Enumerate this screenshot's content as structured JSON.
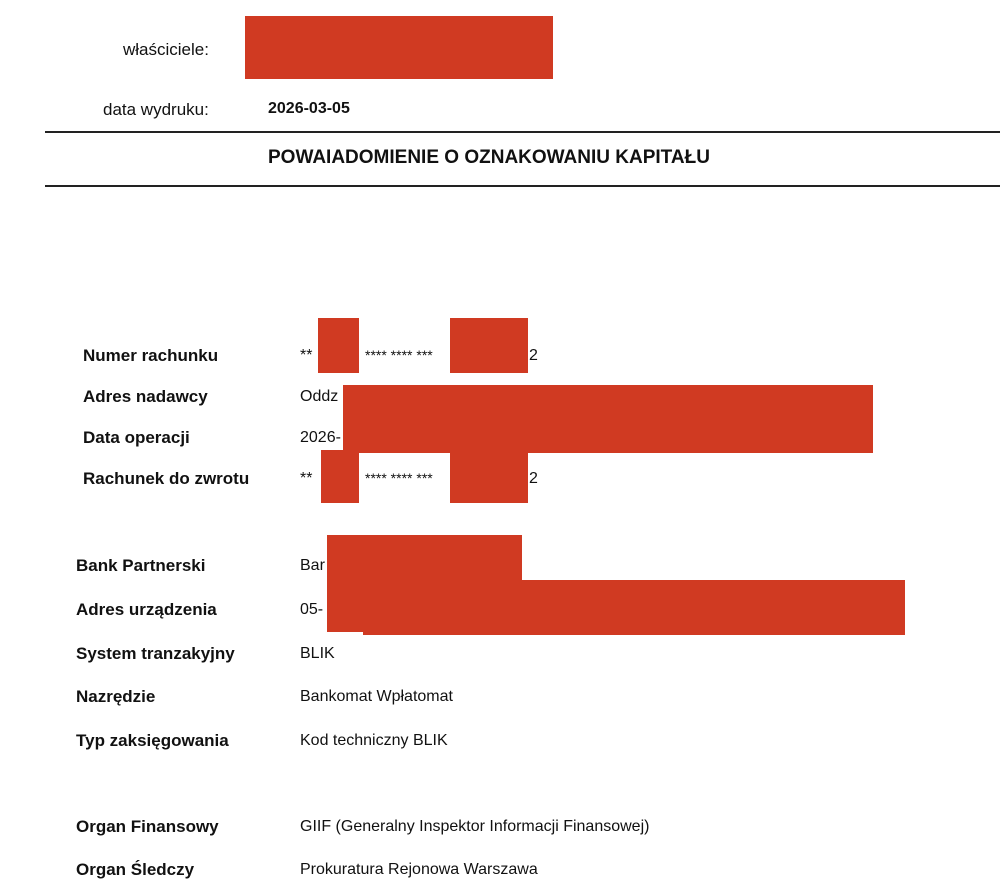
{
  "header": {
    "owners_label": "właściciele:",
    "print_date_label": "data wydruku:",
    "print_date": "2026-03-05"
  },
  "title": "POWAIADOMIENIE O OZNAKOWANIU KAPITAŁU",
  "redaction_color": "#d03a22",
  "section1": [
    {
      "label": "Numer rachunku",
      "value_prefix": "**",
      "value_mid": "**** **** ***",
      "value_suffix": "2"
    },
    {
      "label": "Adres nadawcy",
      "value": "Oddz"
    },
    {
      "label": "Data operacji",
      "value": "2026-"
    },
    {
      "label": "Rachunek do zwrotu",
      "value_prefix": "**",
      "value_mid": "**** **** ***",
      "value_suffix": "2"
    }
  ],
  "section2": [
    {
      "label": "Bank Partnerski",
      "value": "Bar"
    },
    {
      "label": "Adres urządzenia",
      "value": "05-"
    },
    {
      "label": "System tranzakyjny",
      "value": "BLIK"
    },
    {
      "label": "Nazrędzie",
      "value": "Bankomat Wpłatomat"
    },
    {
      "label": "Typ zaksięgowania",
      "value": "Kod techniczny BLIK"
    }
  ],
  "section3": [
    {
      "label": "Organ Finansowy",
      "value": "GIIF (Generalny Inspektor Informacji Finansowej)"
    },
    {
      "label": "Organ Śledczy",
      "value": "Prokuratura Rejonowa Warszawa"
    }
  ]
}
